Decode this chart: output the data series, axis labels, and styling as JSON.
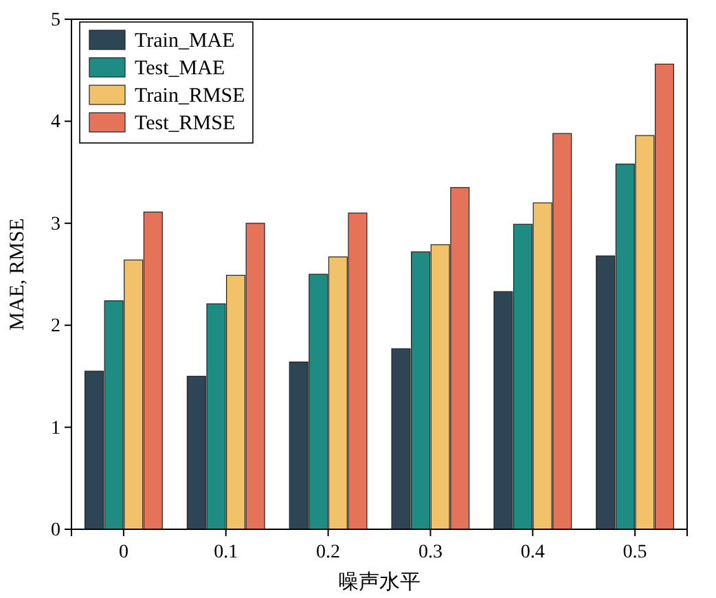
{
  "chart_data": {
    "type": "bar",
    "xlabel": "噪声水平",
    "ylabel": "MAE, RMSE",
    "categories": [
      "0",
      "0.1",
      "0.2",
      "0.3",
      "0.4",
      "0.5"
    ],
    "series": [
      {
        "name": "Train_MAE",
        "color": "#2e4556",
        "values": [
          1.55,
          1.5,
          1.64,
          1.77,
          2.33,
          2.68
        ]
      },
      {
        "name": "Test_MAE",
        "color": "#1e8c83",
        "values": [
          2.24,
          2.21,
          2.5,
          2.72,
          2.99,
          3.58
        ]
      },
      {
        "name": "Train_RMSE",
        "color": "#f2c26b",
        "values": [
          2.64,
          2.49,
          2.67,
          2.79,
          3.2,
          3.86
        ]
      },
      {
        "name": "Test_RMSE",
        "color": "#e5735a",
        "values": [
          3.11,
          3.0,
          3.1,
          3.35,
          3.88,
          4.56
        ]
      }
    ],
    "ylim": [
      0,
      5
    ],
    "yticks": [
      0,
      1,
      2,
      3,
      4,
      5
    ],
    "legend": "top left"
  }
}
